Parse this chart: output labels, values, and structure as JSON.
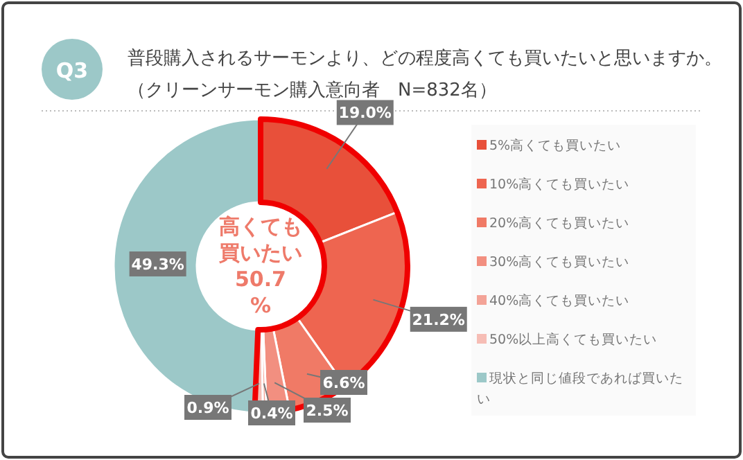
{
  "chart_data": {
    "type": "donut",
    "title": "普段購入されるサーモンより、どの程度高くても買いたいと思いますか。",
    "subtitle": "（クリーンサーモン購入意向者　N=832名）",
    "categories": [
      "5%高くても買いたい",
      "10%高くても買いたい",
      "20%高くても買いたい",
      "30%高くても買いたい",
      "40%高くても買いたい",
      "50%以上高くても買いたい",
      "現状と同じ値段であれば買いたい"
    ],
    "values": [
      19.0,
      21.2,
      6.6,
      2.5,
      0.4,
      0.9,
      49.3
    ],
    "colors": [
      "#e8503a",
      "#ee6550",
      "#f07a66",
      "#f28f80",
      "#f3a397",
      "#f6bdb5",
      "#9cc8c8"
    ],
    "value_labels": [
      "19.0%",
      "21.2%",
      "6.6%",
      "2.5%",
      "0.4%",
      "0.9%",
      "49.3%"
    ],
    "legend": "right",
    "annotations": [
      "Q3",
      "高くても買いたい 50.7%"
    ]
  }
}
